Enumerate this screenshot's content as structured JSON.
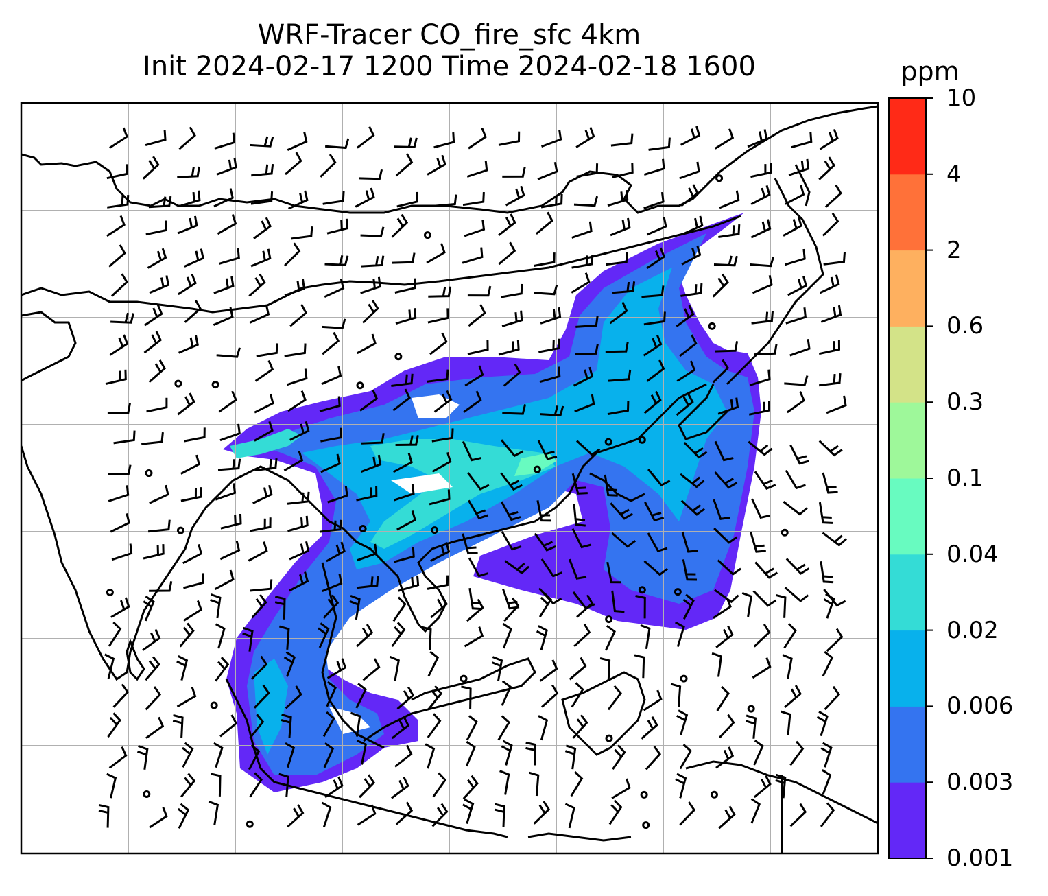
{
  "title": {
    "line1": "WRF-Tracer CO_fire_sfc 4km",
    "line2": "Init 2024-02-17 1200 Time 2024-02-18 1600"
  },
  "colorbar": {
    "unit": "ppm",
    "levels": [
      "0.001",
      "0.003",
      "0.006",
      "0.02",
      "0.04",
      "0.1",
      "0.3",
      "0.6",
      "2",
      "4",
      "10"
    ],
    "colors": [
      "#6328f7",
      "#3474f0",
      "#08b1ec",
      "#34dcd6",
      "#68fbc0",
      "#9ef89a",
      "#d3e388",
      "#feb05f",
      "#ff7139",
      "#ff2a17"
    ]
  },
  "map": {
    "variable": "CO_fire_sfc",
    "gridlines": true,
    "wind_barbs": true,
    "coastlines": true
  }
}
